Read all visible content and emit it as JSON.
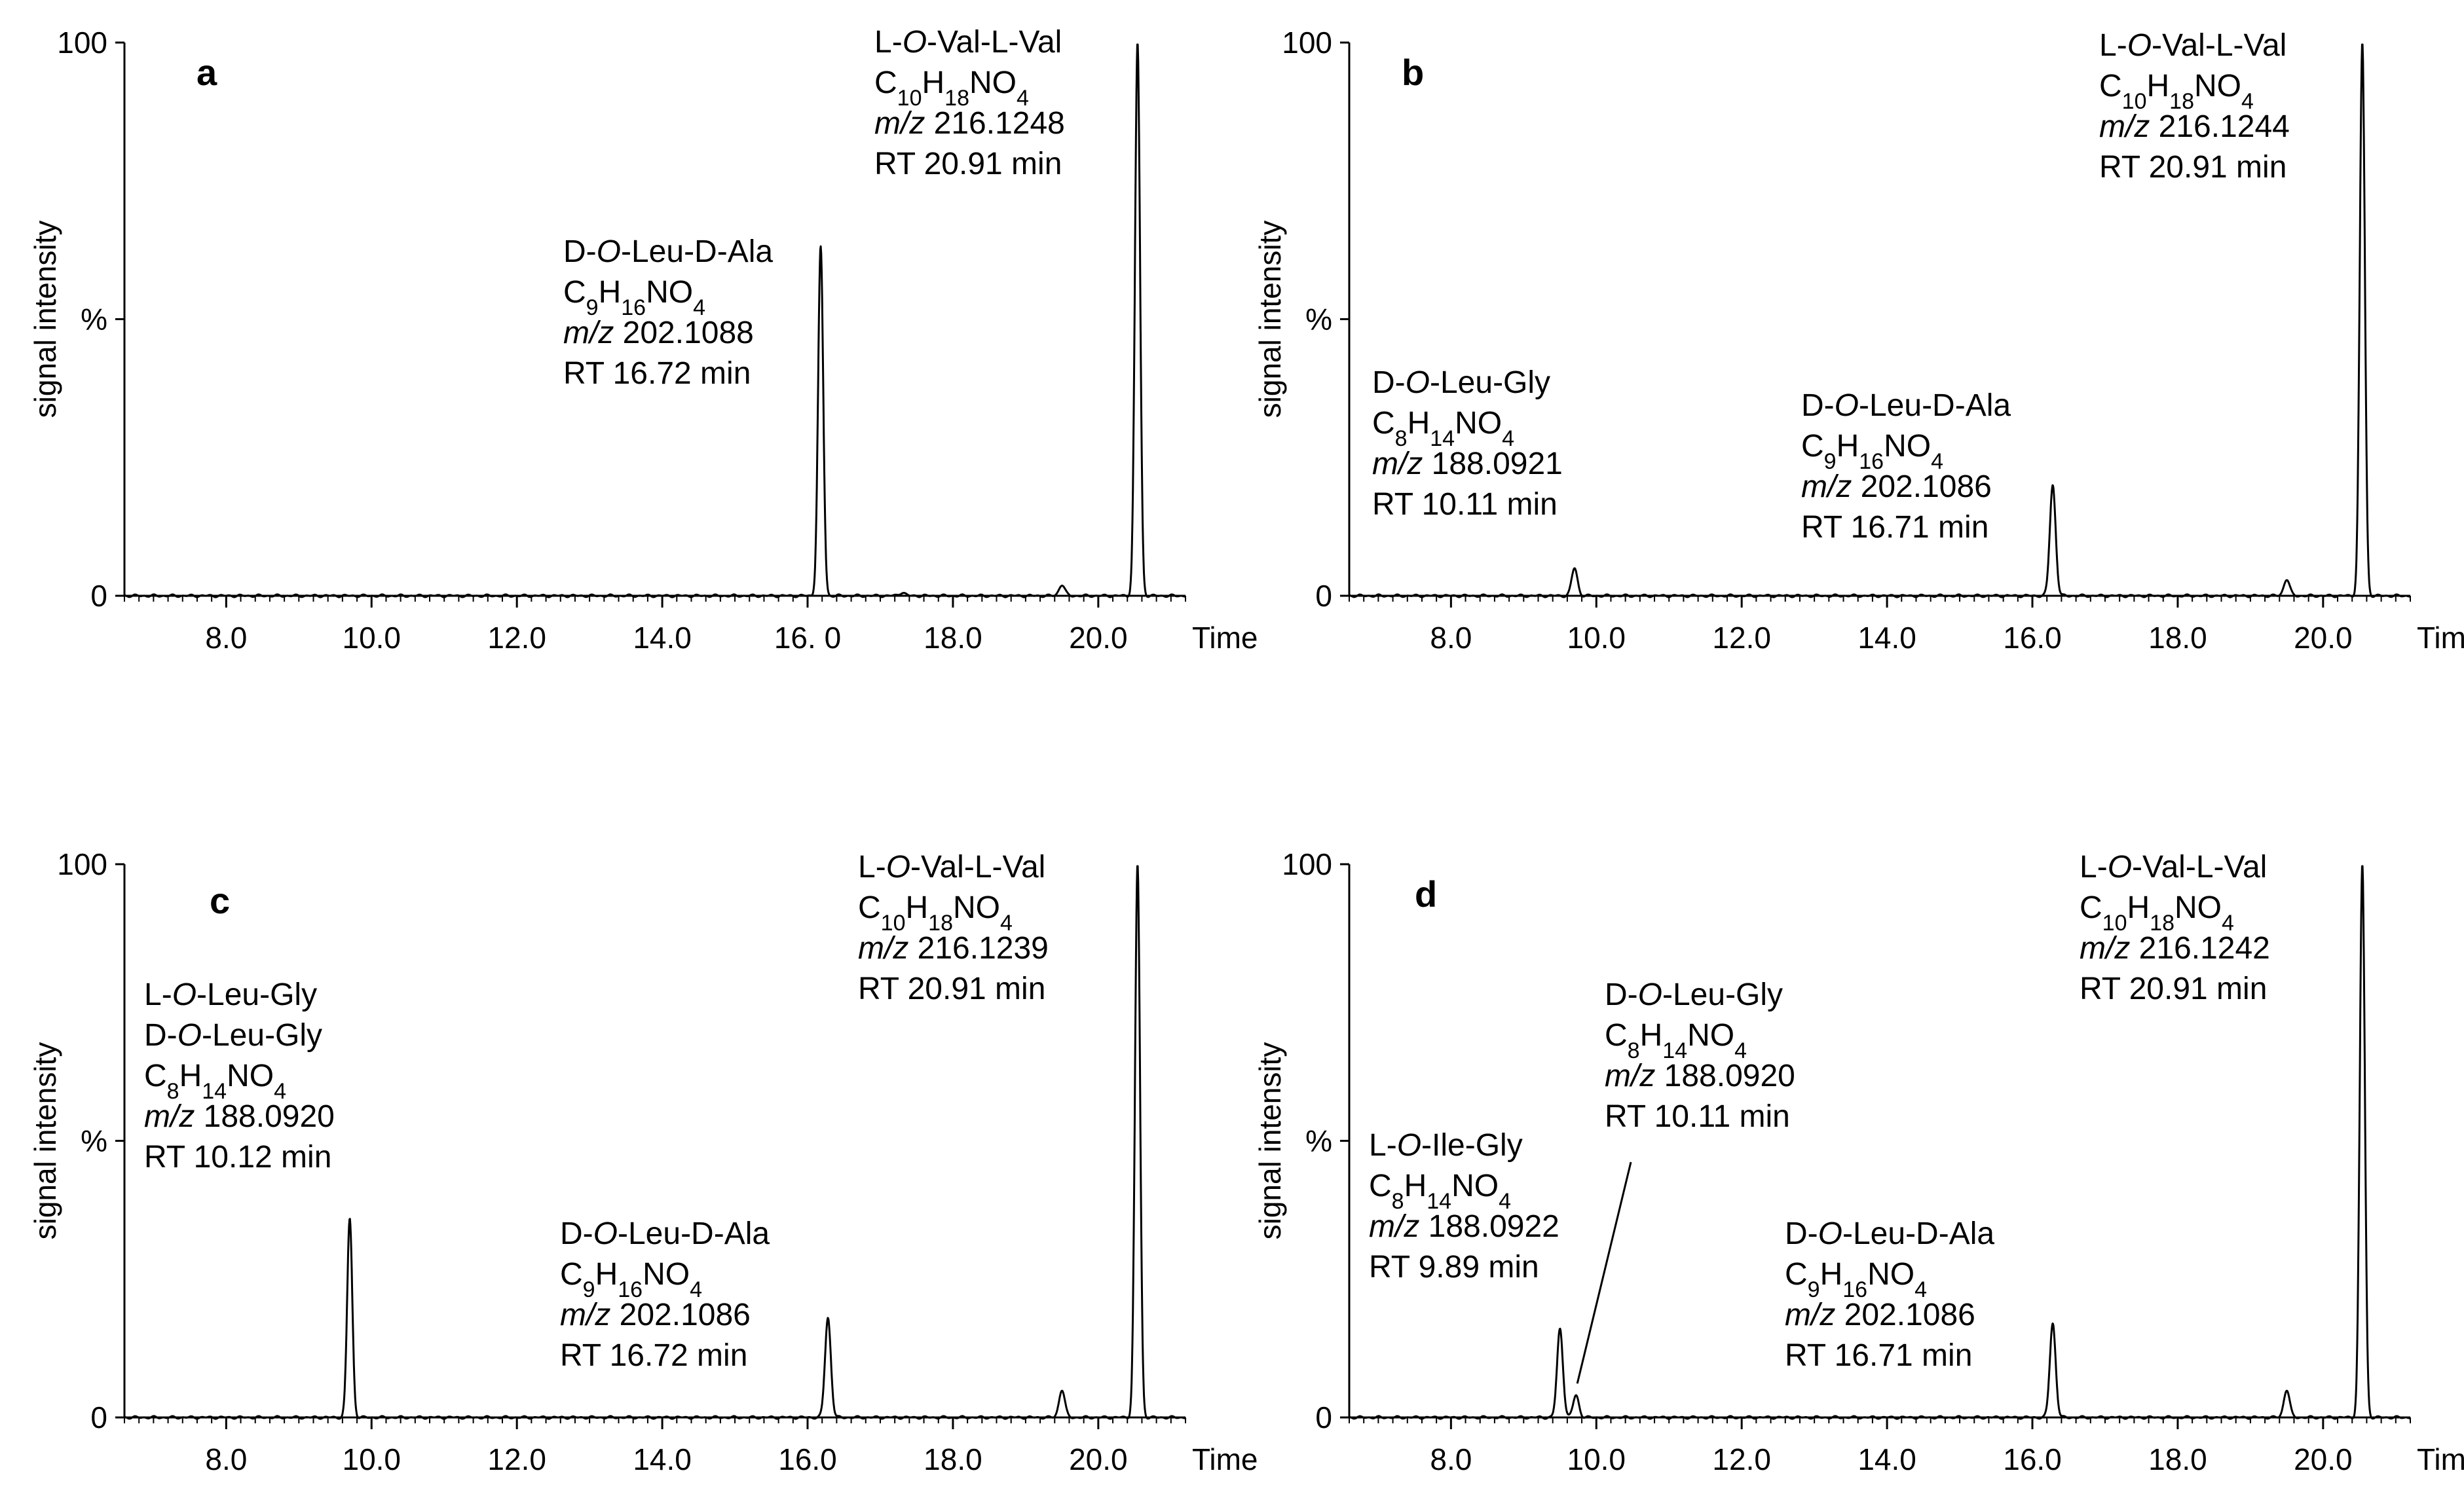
{
  "chart_data": [
    {
      "panel": "a",
      "type": "line",
      "xlabel": "Time",
      "ylabel_word": "signal intensity",
      "ylabel_unit": "%",
      "yticks": [
        "0",
        "%",
        "100"
      ],
      "xticks": [
        "8.0",
        "10.0",
        "12.0",
        "14.0",
        "16. 0",
        "18.0",
        "20.0"
      ],
      "xlim": [
        6.6,
        21.2
      ],
      "ylim": [
        0,
        100
      ],
      "peaks": [
        {
          "x": 16.18,
          "y": 63
        },
        {
          "x": 17.3,
          "y": 0.6
        },
        {
          "x": 19.5,
          "y": 2
        },
        {
          "x": 20.54,
          "y": 100
        }
      ],
      "annotations": [
        {
          "x": 16.18,
          "lines": [
            "D-|O|-Leu-D-Ala",
            "C|9|H|16|NO|4",
            "|m/z| 202.1088",
            "RT 16.72  min"
          ]
        },
        {
          "x": 20.54,
          "lines": [
            "L-|O|-Val-L-Val",
            "C|10|H|18|NO|4",
            "|m/z| 216.1248",
            "RT 20.91  min"
          ]
        }
      ]
    },
    {
      "panel": "b",
      "type": "line",
      "xlabel": "Time",
      "ylabel_word": "signal intensity",
      "ylabel_unit": "%",
      "yticks": [
        "0",
        "%",
        "100"
      ],
      "xticks": [
        "8.0",
        "10.0",
        "12.0",
        "14.0",
        "16.0",
        "18.0",
        "20.0"
      ],
      "xlim": [
        6.6,
        21.2
      ],
      "ylim": [
        0,
        100
      ],
      "peaks": [
        {
          "x": 9.7,
          "y": 5
        },
        {
          "x": 16.28,
          "y": 20
        },
        {
          "x": 19.5,
          "y": 3
        },
        {
          "x": 20.54,
          "y": 100
        }
      ],
      "annotations": [
        {
          "x": 9.7,
          "lines": [
            "D-|O|-Leu-Gly",
            "C|8|H|14|NO|4",
            "|m/z| 188.0921",
            "RT  10.11  min"
          ]
        },
        {
          "x": 16.28,
          "lines": [
            "D-|O|-Leu-D-Ala",
            "C|9|H|16|NO|4",
            "|m/z| 202.1086",
            "RT  16.71  min"
          ]
        },
        {
          "x": 20.54,
          "lines": [
            "L-|O|-Val-L-Val",
            "C|10|H|18|NO|4",
            "|m/z| 216.1244",
            "RT  20.91  min"
          ]
        }
      ]
    },
    {
      "panel": "c",
      "type": "line",
      "xlabel": "Time",
      "ylabel_word": "signal intensity",
      "ylabel_unit": "%",
      "yticks": [
        "0",
        "%",
        "100"
      ],
      "xticks": [
        "8.0",
        "10.0",
        "12.0",
        "14.0",
        "16.0",
        "18.0",
        "20.0"
      ],
      "xlim": [
        6.6,
        21.2
      ],
      "ylim": [
        0,
        100
      ],
      "peaks": [
        {
          "x": 9.7,
          "y": 36
        },
        {
          "x": 16.28,
          "y": 18
        },
        {
          "x": 19.5,
          "y": 5
        },
        {
          "x": 20.54,
          "y": 100
        }
      ],
      "annotations": [
        {
          "x": 9.7,
          "lines": [
            "L-|O|-Leu-Gly",
            "D-|O|-Leu-Gly",
            "C|8|H|14|NO|4",
            "|m/z| 188.0920",
            "RT  10.12  min"
          ]
        },
        {
          "x": 16.28,
          "lines": [
            "D-|O|-Leu-D-Ala",
            "C|9|H|16|NO|4",
            "|m/z| 202.1086",
            "RT  16.72  min"
          ]
        },
        {
          "x": 20.54,
          "lines": [
            "L-|O|-Val-L-Val",
            "C|10|H|18|NO|4",
            "|m/z| 216.1239",
            "RT  20.91  min"
          ]
        }
      ]
    },
    {
      "panel": "d",
      "type": "line",
      "xlabel": "Time",
      "ylabel_word": "signal intensity",
      "ylabel_unit": "%",
      "yticks": [
        "0",
        "%",
        "100"
      ],
      "xticks": [
        "8.0",
        "10.0",
        "12.0",
        "14.0",
        "16.0",
        "18.0",
        "20.0"
      ],
      "xlim": [
        6.6,
        21.2
      ],
      "ylim": [
        0,
        100
      ],
      "peaks": [
        {
          "x": 9.5,
          "y": 16
        },
        {
          "x": 9.72,
          "y": 4
        },
        {
          "x": 16.28,
          "y": 17
        },
        {
          "x": 19.5,
          "y": 5
        },
        {
          "x": 20.54,
          "y": 100
        }
      ],
      "annotations": [
        {
          "x": 9.5,
          "lines": [
            "L-|O|-Ile-Gly",
            "C|8|H|14|NO|4",
            "|m/z| 188.0922",
            "RT  9.89  min"
          ]
        },
        {
          "x": 9.72,
          "lines": [
            "D-|O|-Leu-Gly",
            "C|8|H|14|NO|4",
            "|m/z| 188.0920",
            "RT  10.11  min"
          ]
        },
        {
          "x": 16.28,
          "lines": [
            "D-|O|-Leu-D-Ala",
            "C|9|H|16|NO|4",
            "|m/z| 202.1086",
            "RT  16.71  min"
          ]
        },
        {
          "x": 20.54,
          "lines": [
            "L-|O|-Val-L-Val",
            "C|10|H|18|NO|4",
            "|m/z| 216.1242",
            "RT  20.91  min"
          ]
        }
      ]
    }
  ]
}
